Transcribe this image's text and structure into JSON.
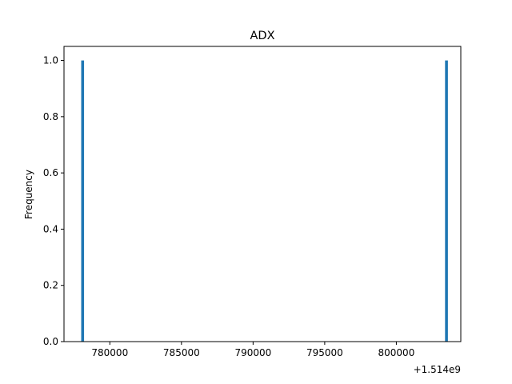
{
  "chart_data": {
    "type": "bar",
    "title": "ADX",
    "xlabel": "",
    "ylabel": "Frequency",
    "x_offset_label": "+1.514e9",
    "x_offset": 1514000000,
    "xlim": [
      1514776800,
      1514804500
    ],
    "ylim": [
      0,
      1.05
    ],
    "bin_width": 200,
    "bars": [
      {
        "x": 1514778000,
        "value": 1.0
      },
      {
        "x": 1514803400,
        "value": 1.0
      }
    ],
    "x_ticks": [
      {
        "value": 1514780000,
        "label": "780000"
      },
      {
        "value": 1514785000,
        "label": "785000"
      },
      {
        "value": 1514790000,
        "label": "790000"
      },
      {
        "value": 1514795000,
        "label": "795000"
      },
      {
        "value": 1514800000,
        "label": "800000"
      }
    ],
    "y_ticks": [
      {
        "value": 0.0,
        "label": "0.0"
      },
      {
        "value": 0.2,
        "label": "0.2"
      },
      {
        "value": 0.4,
        "label": "0.4"
      },
      {
        "value": 0.6,
        "label": "0.6"
      },
      {
        "value": 0.8,
        "label": "0.8"
      },
      {
        "value": 1.0,
        "label": "1.0"
      }
    ],
    "bar_color": "#1f77b4",
    "grid": false,
    "legend": "none"
  }
}
